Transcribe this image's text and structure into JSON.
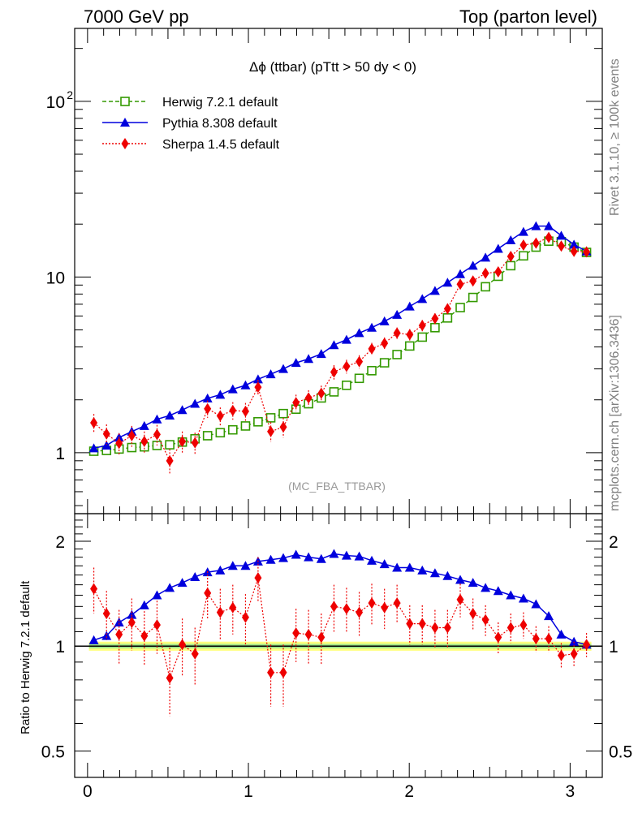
{
  "header": {
    "left": "7000 GeV pp",
    "right": "Top (parton level)"
  },
  "side_text": {
    "rivet": "Rivet 3.1.10, ≥ 100k events",
    "mcplots": "mcplots.cern.ch [arXiv:1306.3436]"
  },
  "colors": {
    "herwig": "#339900",
    "pythia": "#0000dd",
    "sherpa": "#ee0000",
    "band_outer": "#ffff80",
    "band_inner": "#8be08b"
  },
  "chart_data": [
    {
      "type": "line",
      "panel": "main",
      "title": "Δϕ (ttbar) (pTtt > 50 dy < 0)",
      "annotation": "(MC_FBA_TTBAR)",
      "yscale": "log",
      "xlim": [
        -0.08,
        3.2
      ],
      "ylim": [
        0.45,
        260
      ],
      "x_ticks": [
        0,
        1,
        2,
        3
      ],
      "y_ticks": [
        1,
        10,
        100
      ],
      "y_tick_labels": [
        "1",
        "10",
        "10^2"
      ],
      "legend_position": "top-left",
      "x": [
        0.039,
        0.118,
        0.196,
        0.275,
        0.353,
        0.432,
        0.511,
        0.589,
        0.668,
        0.746,
        0.825,
        0.903,
        0.982,
        1.06,
        1.139,
        1.217,
        1.296,
        1.374,
        1.453,
        1.532,
        1.61,
        1.689,
        1.767,
        1.846,
        1.924,
        2.003,
        2.081,
        2.16,
        2.238,
        2.317,
        2.396,
        2.474,
        2.553,
        2.631,
        2.71,
        2.788,
        2.867,
        2.945,
        3.024,
        3.102
      ],
      "series": [
        {
          "name": "Herwig 7.2.1 default",
          "values": [
            1.02,
            1.03,
            1.05,
            1.07,
            1.08,
            1.1,
            1.11,
            1.15,
            1.2,
            1.25,
            1.3,
            1.35,
            1.42,
            1.5,
            1.58,
            1.67,
            1.77,
            1.9,
            2.05,
            2.22,
            2.42,
            2.65,
            2.93,
            3.25,
            3.62,
            4.05,
            4.55,
            5.15,
            5.85,
            6.7,
            7.65,
            8.8,
            10.1,
            11.6,
            13.2,
            14.8,
            16.0,
            15.9,
            14.8,
            13.8
          ]
        },
        {
          "name": "Pythia 8.308 default",
          "values": [
            1.06,
            1.1,
            1.22,
            1.32,
            1.42,
            1.55,
            1.63,
            1.75,
            1.9,
            2.04,
            2.14,
            2.3,
            2.42,
            2.62,
            2.8,
            3.0,
            3.25,
            3.42,
            3.65,
            4.1,
            4.4,
            4.8,
            5.15,
            5.6,
            6.1,
            6.8,
            7.5,
            8.35,
            9.3,
            10.4,
            11.6,
            12.9,
            14.5,
            16.2,
            18.1,
            19.5,
            19.5,
            17.2,
            15.3,
            14.0
          ]
        },
        {
          "name": "Sherpa 1.4.5 default",
          "values": [
            1.48,
            1.28,
            1.13,
            1.25,
            1.16,
            1.27,
            0.9,
            1.16,
            1.14,
            1.78,
            1.62,
            1.74,
            1.72,
            2.36,
            1.32,
            1.4,
            1.93,
            2.05,
            2.18,
            2.88,
            3.1,
            3.3,
            3.9,
            4.2,
            4.8,
            4.7,
            5.3,
            5.8,
            6.6,
            9.1,
            9.5,
            10.5,
            10.7,
            13.1,
            15.2,
            15.6,
            16.8,
            15.0,
            14.0,
            13.9
          ],
          "errors": [
            0.18,
            0.17,
            0.16,
            0.17,
            0.16,
            0.17,
            0.15,
            0.16,
            0.16,
            0.2,
            0.19,
            0.2,
            0.2,
            0.24,
            0.17,
            0.18,
            0.21,
            0.22,
            0.23,
            0.27,
            0.28,
            0.29,
            0.32,
            0.33,
            0.36,
            0.35,
            0.39,
            0.41,
            0.45,
            0.57,
            0.59,
            0.63,
            0.65,
            0.75,
            0.85,
            0.88,
            0.92,
            0.85,
            0.8,
            0.79
          ]
        }
      ]
    },
    {
      "type": "line",
      "panel": "ratio",
      "ylabel": "Ratio to Herwig 7.2.1 default",
      "yscale": "log",
      "xlim": [
        -0.08,
        3.2
      ],
      "ylim": [
        0.42,
        2.4
      ],
      "x_ticks": [
        0,
        1,
        2,
        3
      ],
      "x_tick_labels": [
        "0",
        "1",
        "2",
        "3"
      ],
      "y_ticks": [
        0.5,
        1,
        2
      ],
      "y_tick_labels": [
        "0.5",
        "1",
        "2"
      ],
      "reference_band": [
        0.97,
        1.03
      ],
      "series": [
        {
          "name": "Pythia 8.308 default",
          "values": [
            1.04,
            1.07,
            1.17,
            1.23,
            1.31,
            1.4,
            1.47,
            1.52,
            1.58,
            1.63,
            1.65,
            1.7,
            1.7,
            1.75,
            1.77,
            1.79,
            1.83,
            1.8,
            1.78,
            1.84,
            1.82,
            1.81,
            1.76,
            1.72,
            1.68,
            1.68,
            1.65,
            1.62,
            1.59,
            1.55,
            1.52,
            1.47,
            1.44,
            1.4,
            1.37,
            1.32,
            1.22,
            1.08,
            1.03,
            1.01
          ]
        },
        {
          "name": "Sherpa 1.4.5 default",
          "values": [
            1.46,
            1.24,
            1.08,
            1.17,
            1.07,
            1.15,
            0.81,
            1.01,
            0.95,
            1.42,
            1.25,
            1.29,
            1.21,
            1.57,
            0.84,
            0.84,
            1.09,
            1.08,
            1.06,
            1.3,
            1.28,
            1.25,
            1.33,
            1.29,
            1.33,
            1.16,
            1.16,
            1.13,
            1.13,
            1.36,
            1.24,
            1.19,
            1.06,
            1.13,
            1.15,
            1.05,
            1.05,
            0.94,
            0.95,
            1.01
          ],
          "errors": [
            0.22,
            0.2,
            0.19,
            0.2,
            0.19,
            0.2,
            0.18,
            0.19,
            0.18,
            0.22,
            0.21,
            0.21,
            0.2,
            0.23,
            0.17,
            0.17,
            0.19,
            0.19,
            0.18,
            0.2,
            0.19,
            0.18,
            0.18,
            0.17,
            0.17,
            0.15,
            0.15,
            0.14,
            0.14,
            0.15,
            0.13,
            0.12,
            0.11,
            0.11,
            0.1,
            0.09,
            0.09,
            0.08,
            0.08,
            0.08
          ]
        }
      ]
    }
  ]
}
